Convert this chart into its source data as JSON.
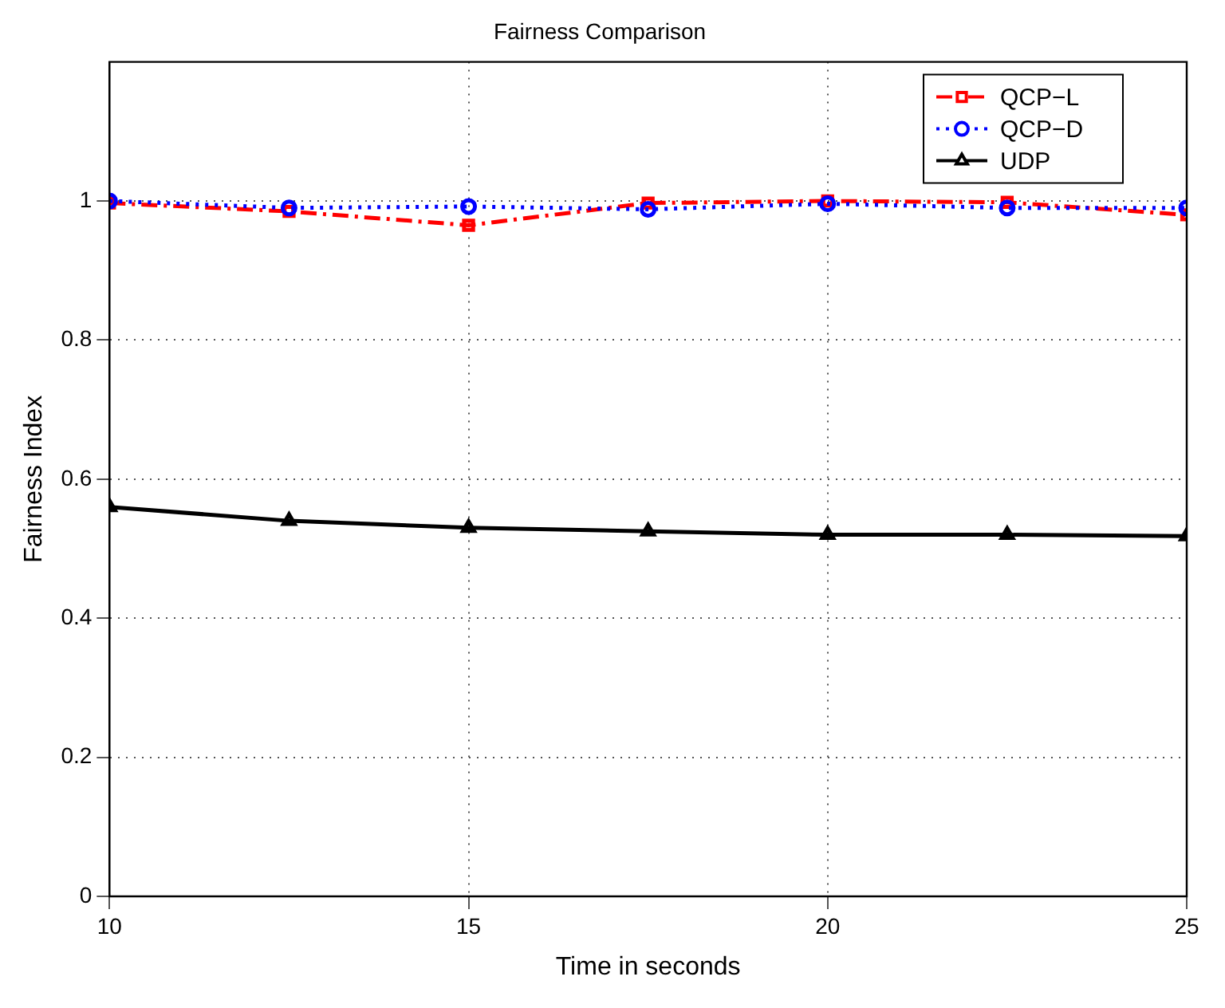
{
  "chart_data": {
    "type": "line",
    "title": "Fairness Comparison",
    "xlabel": "Time in seconds",
    "ylabel": "Fairness Index",
    "x": [
      10,
      12.5,
      15,
      17.5,
      20,
      22.5,
      25
    ],
    "series": [
      {
        "name": "QCP−L",
        "color": "#ff0000",
        "marker": "square",
        "line_style": "dashed",
        "values": [
          0.997,
          0.985,
          0.965,
          0.997,
          1.0,
          0.998,
          0.98
        ]
      },
      {
        "name": "QCP−D",
        "color": "#0000ff",
        "marker": "circle",
        "line_style": "dotted",
        "values": [
          1.0,
          0.99,
          0.992,
          0.988,
          0.996,
          0.99,
          0.99
        ]
      },
      {
        "name": "UDP",
        "color": "#000000",
        "marker": "triangle",
        "line_style": "solid",
        "values": [
          0.56,
          0.54,
          0.53,
          0.525,
          0.52,
          0.52,
          0.518
        ]
      }
    ],
    "xlim": [
      10,
      25
    ],
    "xticks": [
      10,
      15,
      20,
      25
    ],
    "ylim": [
      0,
      1.2
    ],
    "yticks": [
      0,
      0.2,
      0.4,
      0.6,
      0.8,
      1
    ],
    "grid": true,
    "legend": "top right"
  }
}
